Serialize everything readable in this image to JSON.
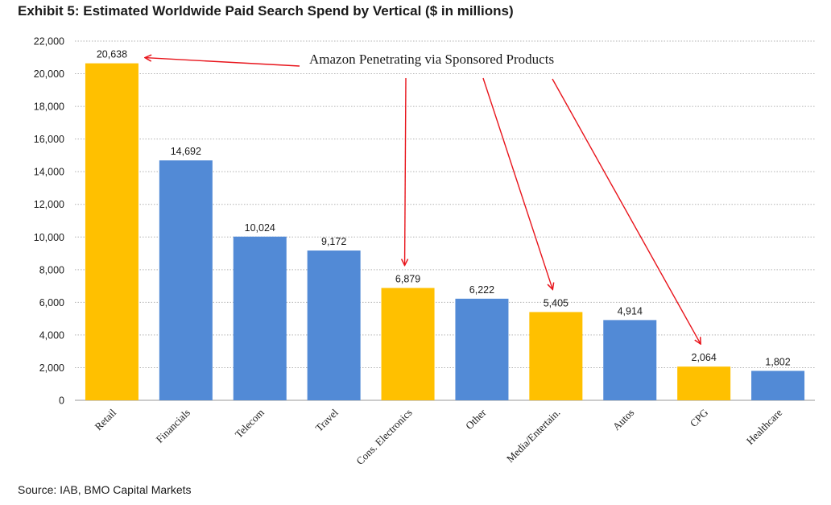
{
  "chart_data": {
    "type": "bar",
    "title": "Exhibit 5: Estimated Worldwide Paid Search Spend by Vertical ($ in millions)",
    "source": "Source: IAB, BMO Capital Markets",
    "categories": [
      "Retail",
      "Financials",
      "Telecom",
      "Travel",
      "Cons. Electronics",
      "Other",
      "Media/Entertain.",
      "Autos",
      "CPG",
      "Healthcare"
    ],
    "values": [
      20638,
      14692,
      10024,
      9172,
      6879,
      6222,
      5405,
      4914,
      2064,
      1802
    ],
    "value_labels": [
      "20,638",
      "14,692",
      "10,024",
      "9,172",
      "6,879",
      "6,222",
      "5,405",
      "4,914",
      "2,064",
      "1,802"
    ],
    "highlighted": [
      true,
      false,
      false,
      false,
      true,
      false,
      true,
      false,
      true,
      false
    ],
    "ylim": [
      0,
      22000
    ],
    "yticks": [
      0,
      2000,
      4000,
      6000,
      8000,
      10000,
      12000,
      14000,
      16000,
      18000,
      20000,
      22000
    ],
    "ytick_labels": [
      "0",
      "2,000",
      "4,000",
      "6,000",
      "8,000",
      "10,000",
      "12,000",
      "14,000",
      "16,000",
      "18,000",
      "20,000",
      "22,000"
    ],
    "grid": "dotted horizontal",
    "xlabel": "",
    "ylabel": "",
    "annotation": {
      "text": "Amazon Penetrating via Sponsored Products",
      "targets": [
        "Retail",
        "Cons. Electronics",
        "Media/Entertain.",
        "CPG"
      ]
    },
    "colors": {
      "highlight": "#FFC000",
      "base": "#528AD6",
      "arrow": "#E8141B",
      "grid": "#b3b3b3"
    }
  }
}
